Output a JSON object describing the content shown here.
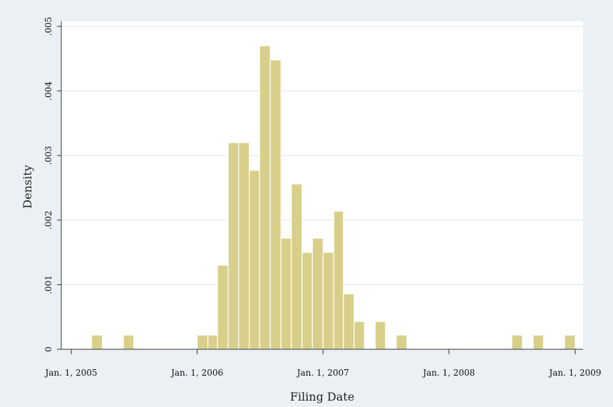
{
  "chart_data": {
    "type": "bar",
    "title": "",
    "xlabel": "Filing Date",
    "ylabel": "Density",
    "x_axis": {
      "type": "date",
      "range": [
        "2005-01-01",
        "2009-01-01"
      ],
      "ticks": [
        {
          "date": "2005-01-01",
          "label": "Jan. 1, 2005"
        },
        {
          "date": "2006-01-01",
          "label": "Jan. 1, 2006"
        },
        {
          "date": "2007-01-01",
          "label": "Jan. 1, 2007"
        },
        {
          "date": "2008-01-01",
          "label": "Jan. 1, 2008"
        },
        {
          "date": "2009-01-01",
          "label": "Jan. 1, 2009"
        }
      ]
    },
    "y_axis": {
      "range": [
        0,
        0.005
      ],
      "ticks": [
        {
          "value": 0,
          "label": "0"
        },
        {
          "value": 0.001,
          "label": ".001"
        },
        {
          "value": 0.002,
          "label": ".002"
        },
        {
          "value": 0.003,
          "label": ".003"
        },
        {
          "value": 0.004,
          "label": ".004"
        },
        {
          "value": 0.005,
          "label": ".005"
        }
      ]
    },
    "grid": true,
    "bar_color": "#d8cf8a",
    "bars": [
      {
        "start": "2005-03-01",
        "end": "2005-04-01",
        "density": 0.00022
      },
      {
        "start": "2005-06-01",
        "end": "2005-07-01",
        "density": 0.00022
      },
      {
        "start": "2006-01-01",
        "end": "2006-02-01",
        "density": 0.00022
      },
      {
        "start": "2006-02-01",
        "end": "2006-03-01",
        "density": 0.00022
      },
      {
        "start": "2006-03-01",
        "end": "2006-04-01",
        "density": 0.0013
      },
      {
        "start": "2006-04-01",
        "end": "2006-05-01",
        "density": 0.0032
      },
      {
        "start": "2006-05-01",
        "end": "2006-06-01",
        "density": 0.0032
      },
      {
        "start": "2006-06-01",
        "end": "2006-07-01",
        "density": 0.00277
      },
      {
        "start": "2006-07-01",
        "end": "2006-08-01",
        "density": 0.0047
      },
      {
        "start": "2006-08-01",
        "end": "2006-09-01",
        "density": 0.00448
      },
      {
        "start": "2006-09-01",
        "end": "2006-10-01",
        "density": 0.00172
      },
      {
        "start": "2006-10-01",
        "end": "2006-11-01",
        "density": 0.00256
      },
      {
        "start": "2006-11-01",
        "end": "2006-12-01",
        "density": 0.0015
      },
      {
        "start": "2006-12-01",
        "end": "2007-01-01",
        "density": 0.00172
      },
      {
        "start": "2007-01-01",
        "end": "2007-02-01",
        "density": 0.0015
      },
      {
        "start": "2007-02-01",
        "end": "2007-03-01",
        "density": 0.00214
      },
      {
        "start": "2007-03-01",
        "end": "2007-04-01",
        "density": 0.00086
      },
      {
        "start": "2007-04-01",
        "end": "2007-05-01",
        "density": 0.00043
      },
      {
        "start": "2007-06-01",
        "end": "2007-07-01",
        "density": 0.00043
      },
      {
        "start": "2007-08-01",
        "end": "2007-09-01",
        "density": 0.00022
      },
      {
        "start": "2008-07-01",
        "end": "2008-08-01",
        "density": 0.00022
      },
      {
        "start": "2008-09-01",
        "end": "2008-10-01",
        "density": 0.00022
      },
      {
        "start": "2008-12-01",
        "end": "2009-01-01",
        "density": 0.00022
      }
    ]
  }
}
